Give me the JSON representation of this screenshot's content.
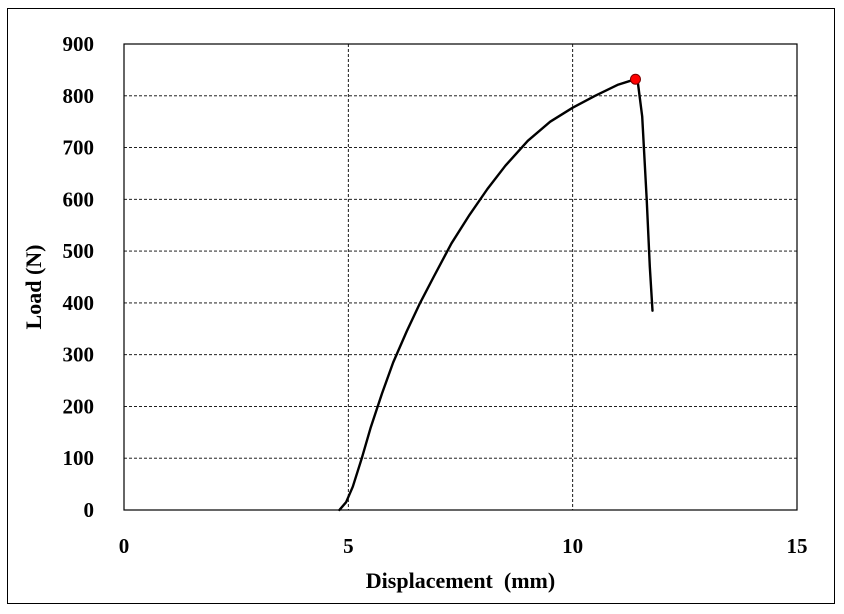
{
  "chart_data": {
    "type": "line",
    "xlabel": "Displacement  (mm)",
    "ylabel": "Load (N)",
    "xlim": [
      0,
      15
    ],
    "ylim": [
      0,
      900
    ],
    "x_ticks": [
      0,
      5,
      10,
      15
    ],
    "y_ticks": [
      0,
      100,
      200,
      300,
      400,
      500,
      600,
      700,
      800,
      900
    ],
    "grid": true,
    "legend": "none",
    "series": [
      {
        "color": "#000000",
        "x": [
          4.8,
          4.95,
          5.1,
          5.3,
          5.5,
          5.75,
          6.0,
          6.3,
          6.6,
          6.9,
          7.3,
          7.7,
          8.1,
          8.5,
          9.0,
          9.5,
          10.0,
          10.5,
          11.0,
          11.4,
          11.45,
          11.55,
          11.65,
          11.72,
          11.78
        ],
        "y": [
          0,
          15,
          45,
          100,
          160,
          225,
          285,
          345,
          400,
          450,
          515,
          570,
          620,
          665,
          713,
          750,
          777,
          800,
          821,
          832,
          828,
          760,
          600,
          470,
          385
        ]
      }
    ],
    "markers": [
      {
        "x": 11.4,
        "y": 832,
        "color": "#ff0000"
      }
    ]
  }
}
